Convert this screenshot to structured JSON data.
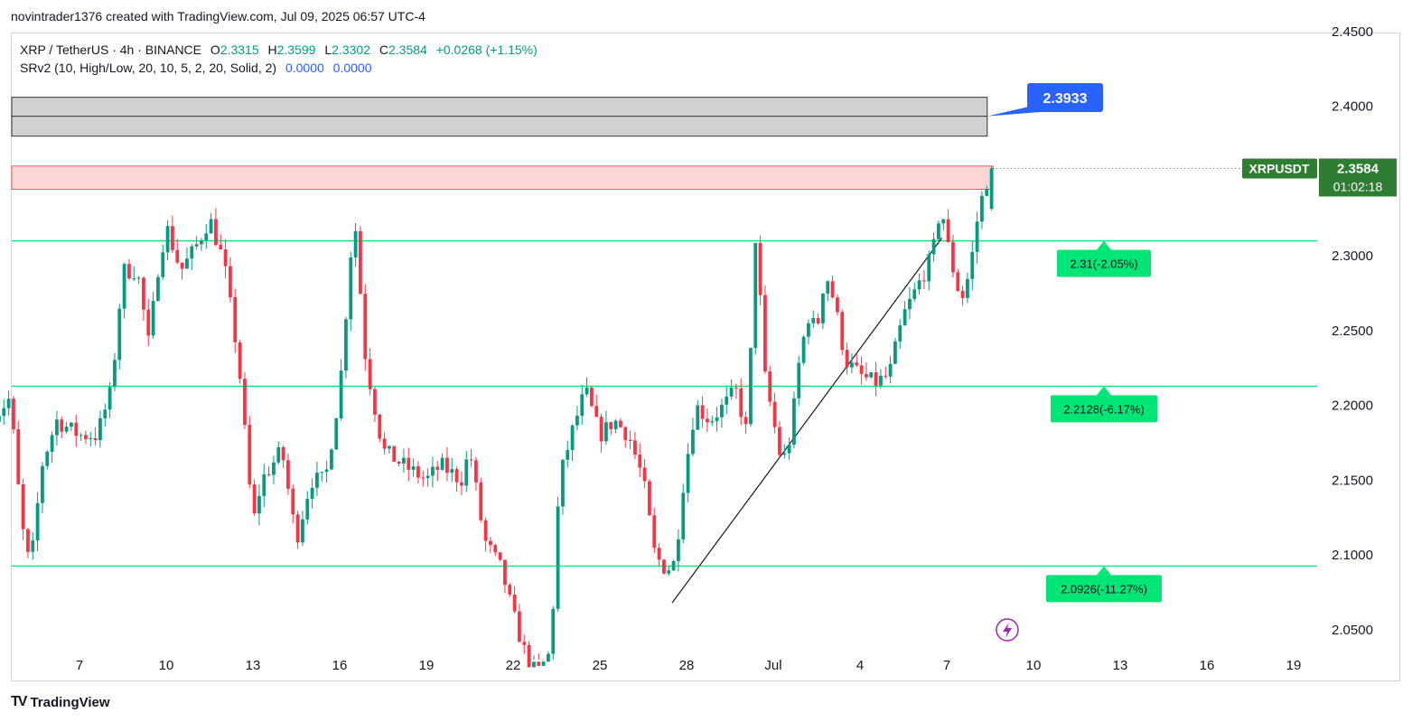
{
  "header": {
    "caption": "novintrader1376 created with TradingView.com, Jul 09, 2025 06:57 UTC-4"
  },
  "legend": {
    "symbol": "XRP / TetherUS · 4h · BINANCE",
    "o_label": "O",
    "o_value": "2.3315",
    "h_label": "H",
    "h_value": "2.3599",
    "l_label": "L",
    "l_value": "2.3302",
    "c_label": "C",
    "c_value": "2.3584",
    "change": "+0.0268 (+1.15%)",
    "indicator": "SRv2 (10, High/Low, 20, 10, 5, 2, 20, Solid, 2)",
    "indicator_v1": "0.0000",
    "indicator_v2": "0.0000"
  },
  "footer": {
    "logo_text": "TradingView",
    "logo_mark": "TV"
  },
  "colors": {
    "up": "#089981",
    "down": "#f23645",
    "level_line": "#00e676",
    "label_green": "#00e676",
    "blue_label": "#2962ff",
    "price_tag": "#2e7d32"
  },
  "chart_data": {
    "type": "candlestick",
    "symbol": "XRPUSDT",
    "timeframe": "4h",
    "ylim": [
      2.03,
      2.465
    ],
    "y_ticks": [
      "2.4500",
      "2.4000",
      "2.3000",
      "2.2500",
      "2.2000",
      "2.1500",
      "2.1000",
      "2.0500"
    ],
    "x_ticks": [
      "7",
      "10",
      "13",
      "16",
      "19",
      "22",
      "25",
      "28",
      "Jul",
      "4",
      "7",
      "10",
      "13",
      "16",
      "19"
    ],
    "last_price": "2.3584",
    "countdown": "01:02:18",
    "price_tag_label": "XRPUSDT",
    "callout": "2.3933",
    "zones": [
      {
        "name": "resistance-zone-gray",
        "top": 2.406,
        "bottom": 2.38,
        "mid": 2.3933
      },
      {
        "name": "resistance-zone-red",
        "top": 2.36,
        "bottom": 2.3445
      }
    ],
    "levels": [
      {
        "price": 2.31,
        "label": "2.31(-2.05%)"
      },
      {
        "price": 2.2128,
        "label": "2.2128(-6.17%)"
      },
      {
        "price": 2.0926,
        "label": "2.0926(-11.27%)"
      }
    ],
    "trendline": {
      "from": {
        "day": 27.5,
        "price": 2.068
      },
      "to": {
        "day": 32.3,
        "price": 2.312
      }
    },
    "candles_seed": [
      [
        4.15,
        2.195
      ],
      [
        4.6,
        2.205
      ],
      [
        5.0,
        2.12
      ],
      [
        5.3,
        2.09
      ],
      [
        5.7,
        2.16
      ],
      [
        6.2,
        2.19
      ],
      [
        7.0,
        2.18
      ],
      [
        7.6,
        2.18
      ],
      [
        8.1,
        2.21
      ],
      [
        8.5,
        2.29
      ],
      [
        9.0,
        2.29
      ],
      [
        9.4,
        2.24
      ],
      [
        9.7,
        2.29
      ],
      [
        10.0,
        2.32
      ],
      [
        10.5,
        2.29
      ],
      [
        11.0,
        2.305
      ],
      [
        11.5,
        2.325
      ],
      [
        12.0,
        2.295
      ],
      [
        12.5,
        2.23
      ],
      [
        13.0,
        2.12
      ],
      [
        13.3,
        2.15
      ],
      [
        14.0,
        2.17
      ],
      [
        14.5,
        2.11
      ],
      [
        15.0,
        2.15
      ],
      [
        15.5,
        2.15
      ],
      [
        16.0,
        2.21
      ],
      [
        16.5,
        2.33
      ],
      [
        16.9,
        2.23
      ],
      [
        17.5,
        2.17
      ],
      [
        18.2,
        2.16
      ],
      [
        19.0,
        2.15
      ],
      [
        19.5,
        2.16
      ],
      [
        20.2,
        2.15
      ],
      [
        20.5,
        2.17
      ],
      [
        21.0,
        2.11
      ],
      [
        21.6,
        2.09
      ],
      [
        22.0,
        2.06
      ],
      [
        22.4,
        2.035
      ],
      [
        22.8,
        2.02
      ],
      [
        23.3,
        2.035
      ],
      [
        23.6,
        2.15
      ],
      [
        24.0,
        2.18
      ],
      [
        24.5,
        2.21
      ],
      [
        25.0,
        2.18
      ],
      [
        25.5,
        2.19
      ],
      [
        26.0,
        2.18
      ],
      [
        26.5,
        2.15
      ],
      [
        26.9,
        2.1
      ],
      [
        27.3,
        2.09
      ],
      [
        27.6,
        2.095
      ],
      [
        27.9,
        2.15
      ],
      [
        28.3,
        2.2
      ],
      [
        28.8,
        2.19
      ],
      [
        29.3,
        2.2
      ],
      [
        29.7,
        2.21
      ],
      [
        30.1,
        2.18
      ],
      [
        30.4,
        2.32
      ],
      [
        30.7,
        2.22
      ],
      [
        31.0,
        2.19
      ],
      [
        31.3,
        2.16
      ],
      [
        31.6,
        2.18
      ],
      [
        31.9,
        2.23
      ],
      [
        32.2,
        2.26
      ],
      [
        32.5,
        2.25
      ],
      [
        32.8,
        2.29
      ],
      [
        33.1,
        2.27
      ],
      [
        33.5,
        2.23
      ],
      [
        34.0,
        2.22
      ],
      [
        34.5,
        2.215
      ],
      [
        35.0,
        2.22
      ],
      [
        35.5,
        2.26
      ],
      [
        36.0,
        2.28
      ],
      [
        36.5,
        2.3
      ],
      [
        36.8,
        2.335
      ],
      [
        37.1,
        2.3
      ],
      [
        37.5,
        2.27
      ],
      [
        37.8,
        2.29
      ],
      [
        38.1,
        2.33
      ],
      [
        38.5,
        2.3584
      ]
    ]
  }
}
